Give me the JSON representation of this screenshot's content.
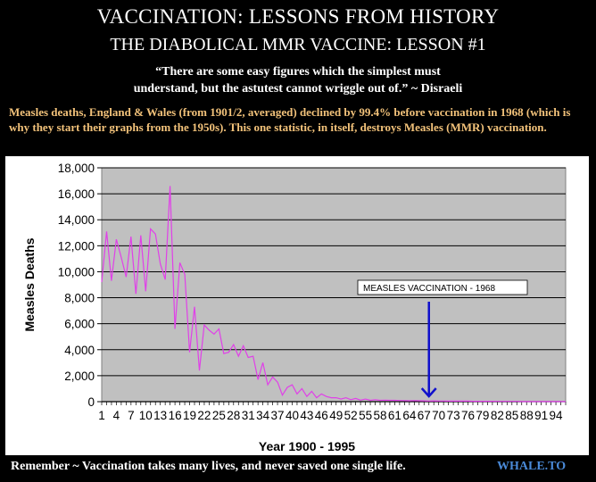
{
  "header": {
    "title": "VACCINATION: LESSONS FROM HISTORY",
    "subtitle": "THE DIABOLICAL MMR VACCINE:   LESSON #1",
    "quote_line1": "“There are some easy figures which the simplest must",
    "quote_line2": "understand, but the astutest cannot wriggle out of.”  ~  Disraeli",
    "intro_text": "Measles deaths, England & Wales (from 1901/2, averaged) declined by 99.4% before vaccination in 1968 (which is why they start their graphs from the 1950s).  This one statistic, in itself, destroys Measles (MMR) vaccination."
  },
  "footer": {
    "left_text": "Remember ~ Vaccination takes many lives, and never saved one single life.",
    "right_text": "WHALE.TO"
  },
  "chart_data": {
    "type": "line",
    "xlabel": "Year 1900 - 1995",
    "ylabel": "Measles Deaths",
    "xlim": [
      1,
      96
    ],
    "ylim": [
      0,
      18000
    ],
    "x_ticks": [
      1,
      4,
      7,
      10,
      13,
      16,
      19,
      22,
      25,
      28,
      31,
      34,
      37,
      40,
      43,
      46,
      49,
      52,
      55,
      58,
      61,
      64,
      67,
      70,
      73,
      76,
      79,
      82,
      85,
      88,
      91,
      94
    ],
    "y_ticks": [
      0,
      2000,
      4000,
      6000,
      8000,
      10000,
      12000,
      14000,
      16000,
      18000
    ],
    "y_tick_labels": [
      "0",
      "2,000",
      "4,000",
      "6,000",
      "8,000",
      "10,000",
      "12,000",
      "14,000",
      "16,000",
      "18,000"
    ],
    "grid": "horizontal",
    "colors": {
      "series": "#e040e8",
      "plot_bg": "#c0c0c0",
      "arrow": "#1010cc"
    },
    "annotation": {
      "text": "MEASLES VACCINATION - 1968",
      "x": 68
    },
    "series": [
      {
        "x": [
          1,
          2,
          3,
          4,
          5,
          6,
          7,
          8,
          9,
          10,
          11,
          12,
          13,
          14,
          15,
          16,
          17,
          18,
          19,
          20,
          21,
          22,
          23,
          24,
          25,
          26,
          27,
          28,
          29,
          30,
          31,
          32,
          33,
          34,
          35,
          36,
          37,
          38,
          39,
          40,
          41,
          42,
          43,
          44,
          45,
          46,
          47,
          48,
          49,
          50,
          51,
          52,
          53,
          54,
          55,
          56,
          57,
          58,
          59,
          60,
          61,
          62,
          63,
          64,
          65,
          66,
          67,
          68,
          69,
          70,
          71,
          72,
          73,
          74,
          75,
          76,
          77,
          78,
          79,
          80,
          81,
          82,
          83,
          84,
          85,
          86,
          87,
          88,
          89,
          90,
          91,
          92,
          93,
          94,
          95,
          96
        ],
        "values": [
          9200,
          13100,
          9300,
          12500,
          11100,
          9600,
          12700,
          8300,
          12800,
          8500,
          13300,
          12900,
          10600,
          9400,
          16600,
          5600,
          10700,
          9800,
          3800,
          7300,
          2400,
          5900,
          5500,
          5200,
          5600,
          3700,
          3800,
          4400,
          3500,
          4300,
          3400,
          3500,
          1700,
          3000,
          1300,
          1900,
          1500,
          500,
          1100,
          1300,
          600,
          1000,
          400,
          800,
          300,
          600,
          400,
          300,
          300,
          200,
          300,
          150,
          250,
          120,
          200,
          100,
          150,
          100,
          120,
          100,
          100,
          90,
          80,
          70,
          80,
          70,
          60,
          50,
          60,
          50,
          50,
          40,
          40,
          40,
          40,
          40,
          30,
          30,
          30,
          30,
          30,
          20,
          20,
          20,
          20,
          20,
          10,
          10,
          10,
          10,
          10,
          10,
          10,
          10,
          10,
          10
        ]
      }
    ]
  }
}
